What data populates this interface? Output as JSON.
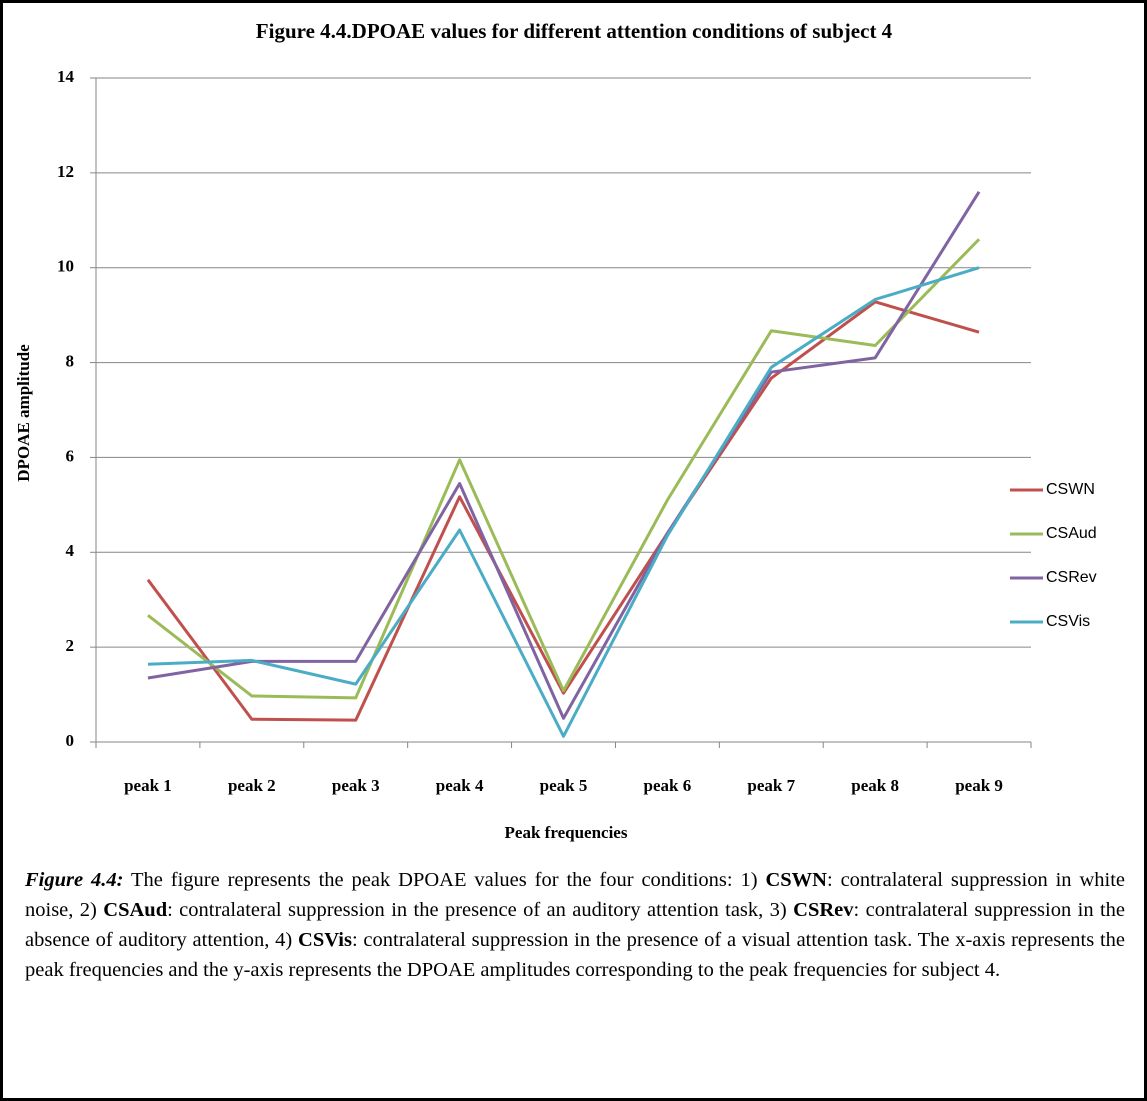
{
  "chart_data": {
    "type": "line",
    "title": "Figure 4.4.DPOAE values for different  attention conditions of subject 4",
    "x_label": "Peak frequencies",
    "y_label": "DPOAE amplitude",
    "categories": [
      "peak 1",
      "peak 2",
      "peak 3",
      "peak 4",
      "peak 5",
      "peak 6",
      "peak 7",
      "peak 8",
      "peak 9"
    ],
    "series": [
      {
        "name": "CSWN",
        "color": "#c0504d",
        "values": [
          3.42,
          0.48,
          0.46,
          5.17,
          1.03,
          4.4,
          7.67,
          9.28,
          8.64
        ]
      },
      {
        "name": "CSAud",
        "color": "#9bbb59",
        "values": [
          2.67,
          0.97,
          0.93,
          5.95,
          1.08,
          5.1,
          8.67,
          8.36,
          10.6
        ]
      },
      {
        "name": "CSRev",
        "color": "#8064a2",
        "values": [
          1.35,
          1.7,
          1.7,
          5.45,
          0.5,
          4.4,
          7.8,
          8.1,
          11.6
        ]
      },
      {
        "name": "CSVis",
        "color": "#4bacc6",
        "values": [
          1.64,
          1.72,
          1.22,
          4.47,
          0.12,
          4.35,
          7.9,
          9.33,
          10.0
        ]
      }
    ],
    "ylim": [
      0,
      14
    ],
    "yticks": [
      0,
      2,
      4,
      6,
      8,
      10,
      12,
      14
    ],
    "grid": true,
    "legend": "right"
  },
  "caption": {
    "label": "Figure 4.4:",
    "parts": [
      "The figure represents the peak DPOAE values for the four conditions: 1)",
      "CSWN",
      ": contralateral suppression in white noise, 2)",
      "CSAud",
      ": contralateral suppression in the presence of an auditory attention task, 3)",
      "CSRev",
      ": contralateral suppression in the absence of auditory attention, 4)",
      "CSVis",
      ": contralateral suppression in the presence of a visual attention task. The x-axis represents the peak frequencies and the y-axis represents the DPOAE amplitudes corresponding to the peak frequencies for subject 4."
    ]
  }
}
